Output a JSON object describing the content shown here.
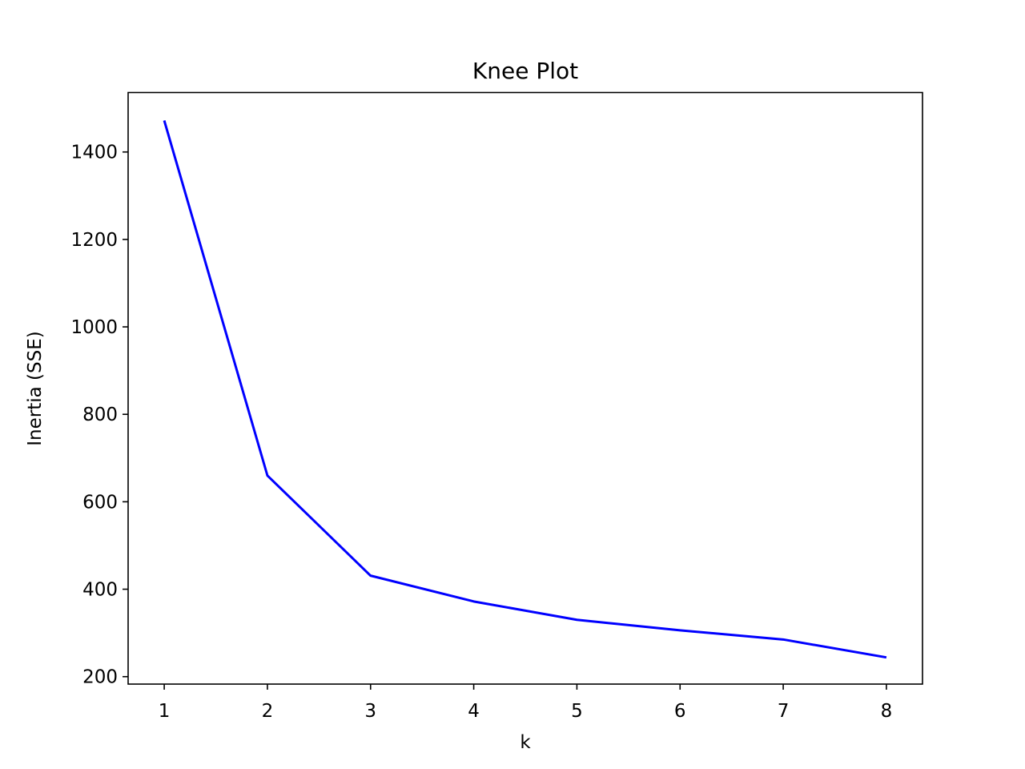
{
  "chart_data": {
    "type": "line",
    "title": "Knee Plot",
    "xlabel": "k",
    "ylabel": "Inertia (SSE)",
    "x": [
      1,
      2,
      3,
      4,
      5,
      6,
      7,
      8
    ],
    "series": [
      {
        "values": [
          1472,
          660,
          431,
          372,
          330,
          306,
          285,
          244
        ],
        "color": "#0000ff"
      }
    ],
    "xticks": [
      1,
      2,
      3,
      4,
      5,
      6,
      7,
      8
    ],
    "yticks": [
      200,
      400,
      600,
      800,
      1000,
      1200,
      1400
    ],
    "xlim": [
      0.65,
      8.35
    ],
    "ylim": [
      183,
      1536
    ],
    "grid": false,
    "legend": "none"
  }
}
